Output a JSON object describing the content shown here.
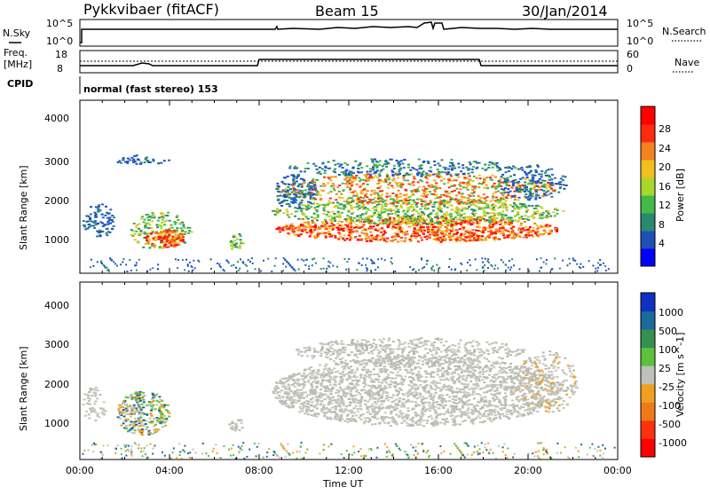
{
  "header": {
    "station": "Pykkvibaer (fitACF)",
    "beam": "Beam 15",
    "date": "30/Jan/2014"
  },
  "noise_panel": {
    "left_label": "N.Sky",
    "right_label": "N.Search",
    "left_ticks": [
      "10^5",
      "10^0"
    ],
    "right_ticks": [
      "10^5",
      "10^0"
    ]
  },
  "freq_panel": {
    "left_label_top": "Freq.",
    "left_label_bottom": "[MHz]",
    "right_label": "Nave",
    "left_ticks": [
      "18",
      "8"
    ],
    "right_ticks": [
      "60",
      "0"
    ]
  },
  "cpid": {
    "label": "CPID",
    "text": "normal (fast stereo) 153"
  },
  "chart_data": [
    {
      "type": "heatmap",
      "name": "power",
      "ylabel": "Slant Range [km]",
      "yticks": [
        "4000",
        "3000",
        "2000",
        "1000"
      ],
      "ylim": [
        200,
        4500
      ],
      "colorbar_label": "Power [dB]",
      "colorbar_ticks": [
        "28",
        "24",
        "20",
        "16",
        "12",
        "8",
        "4"
      ],
      "colorbar_colors": [
        "#0000ff",
        "#1c4fb8",
        "#2a8a6e",
        "#45b84a",
        "#a8d82c",
        "#f0c020",
        "#f58220",
        "#ff2a10",
        "#ff0000"
      ]
    },
    {
      "type": "heatmap",
      "name": "velocity",
      "ylabel": "Slant Range [km]",
      "yticks": [
        "4000",
        "3000",
        "2000",
        "1000"
      ],
      "ylim": [
        200,
        4500
      ],
      "colorbar_label": "Velocity [m s^-1]",
      "colorbar_ticks": [
        "1000",
        "500",
        "100",
        "25",
        "-25",
        "-100",
        "-500",
        "-1000"
      ],
      "colorbar_colors": [
        "#1030c0",
        "#1a6a9a",
        "#3a8f50",
        "#5cc23c",
        "#c0c0b8",
        "#f0a020",
        "#f07818",
        "#ff3010",
        "#ff0000"
      ]
    }
  ],
  "x_axis": {
    "ticks": [
      "00:00",
      "04:00",
      "08:00",
      "12:00",
      "16:00",
      "20:00",
      "00:00"
    ],
    "label": "Time UT"
  }
}
